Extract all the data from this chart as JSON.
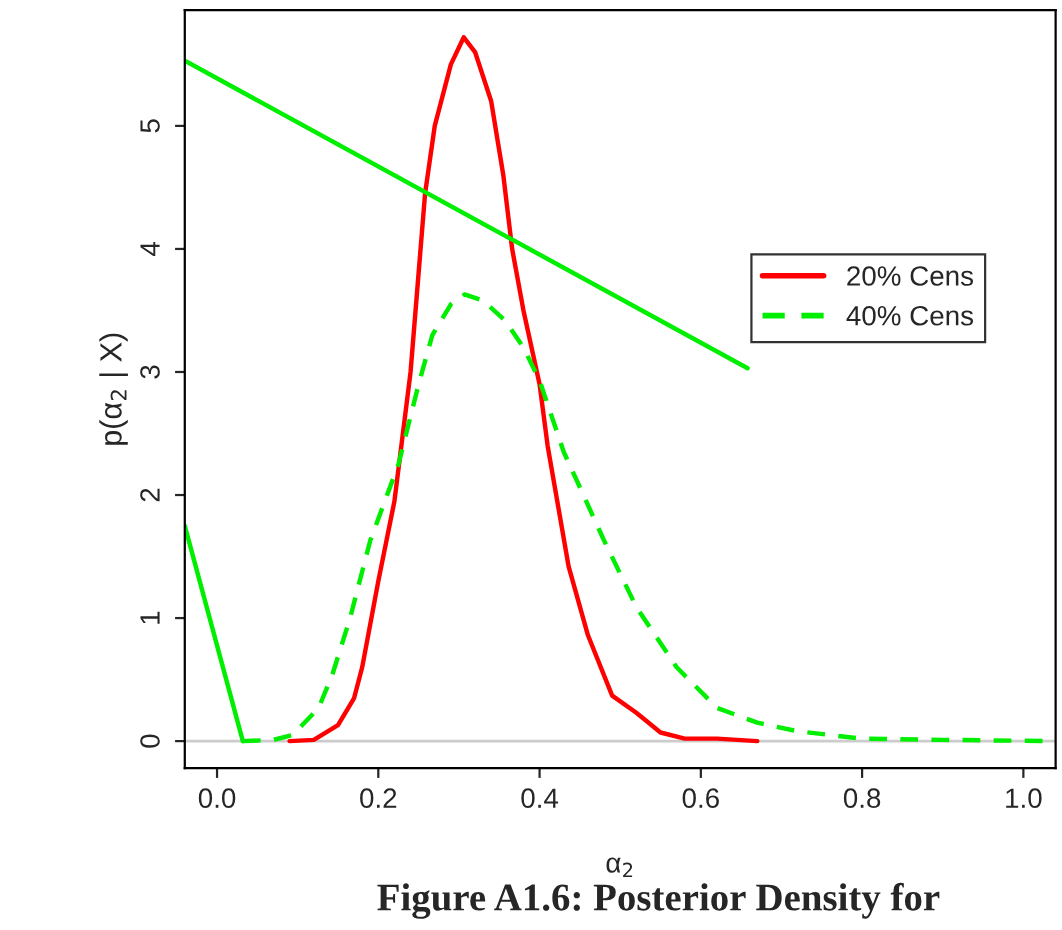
{
  "chart_data": {
    "type": "line",
    "xlabel": "α$_{2}$",
    "ylabel": "p(α$_{2}$ | X)",
    "annotations": [
      "Figure A1.6: Posterior Density for"
    ],
    "xlim": [
      -0.04,
      1.04
    ],
    "ylim": [
      -0.22,
      5.94
    ],
    "xticks": [
      {
        "value": 0,
        "label": "0.0"
      },
      0.2,
      0.4,
      0.6,
      0.8,
      {
        "value": 1,
        "label": "1.0"
      }
    ],
    "yticks": [
      0,
      1,
      2,
      3,
      4,
      5
    ],
    "grid": false,
    "legend": "right",
    "ref_lines": [
      {
        "axis": "y",
        "value": 0,
        "color": "#cccccc"
      }
    ],
    "series": [
      {
        "name": "20% Cens",
        "color": "#ff0000",
        "line_style": "solid",
        "x": [
          0.09,
          0.12,
          0.15,
          0.17,
          0.18,
          0.2,
          0.22,
          0.24,
          0.258,
          0.27,
          0.29,
          0.306,
          0.32,
          0.34,
          0.355,
          0.366,
          0.38,
          0.4,
          0.41,
          0.436,
          0.46,
          0.49,
          0.52,
          0.55,
          0.58,
          0.62,
          0.67
        ],
        "values": [
          0,
          0.01,
          0.13,
          0.35,
          0.6,
          1.3,
          1.95,
          3.0,
          4.45,
          5.0,
          5.5,
          5.72,
          5.6,
          5.2,
          4.6,
          4.0,
          3.5,
          2.9,
          2.4,
          1.42,
          0.86,
          0.37,
          0.23,
          0.07,
          0.02,
          0.02,
          0
        ]
      },
      {
        "name": "40% Cens",
        "color": "#00ee00",
        "line_style": "dashed",
        "x": [
          0.032,
          0.07,
          0.094,
          0.126,
          0.143,
          0.165,
          0.19,
          0.225,
          0.25,
          0.267,
          0.29,
          0.307,
          0.33,
          0.357,
          0.38,
          0.4,
          0.43,
          0.48,
          0.52,
          0.57,
          0.62,
          0.67,
          0.72,
          0.8,
          0.9,
          1.04
        ],
        "values": [
          0,
          0.01,
          0.05,
          0.27,
          0.54,
          1.0,
          1.63,
          2.25,
          2.9,
          3.3,
          3.55,
          3.63,
          3.58,
          3.42,
          3.2,
          2.93,
          2.35,
          1.63,
          1.09,
          0.6,
          0.27,
          0.15,
          0.08,
          0.02,
          0.01,
          0
        ]
      },
      {
        "color": "#00ee00",
        "line_style": "solid",
        "x": [
          0.658,
          -0.04
        ],
        "values": [
          3.03,
          5.53
        ]
      },
      {
        "color": "#00ee00",
        "line_style": "solid",
        "x": [
          -0.04,
          0.032
        ],
        "values": [
          1.75,
          0
        ]
      }
    ]
  }
}
